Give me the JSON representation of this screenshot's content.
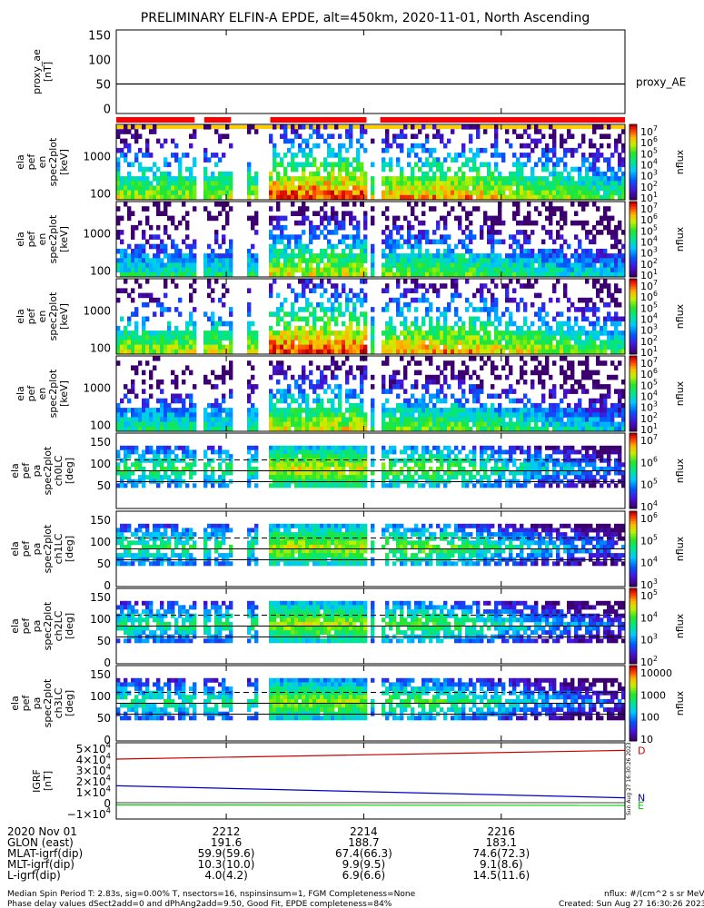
{
  "title": "PRELIMINARY ELFIN-A EPDE, alt=450km, 2020-11-01, North Ascending",
  "colors": {
    "red": "#ff0000",
    "yellow": "#ffcc00",
    "grf_red": "#cc0000",
    "grf_blue": "#0000cc",
    "grf_green": "#00cc00"
  },
  "chart_data": [
    {
      "type": "line",
      "name": "proxy_ae",
      "ylabel_lines": [
        "proxy_ae",
        "[nT]"
      ],
      "ylim": [
        -10,
        160
      ],
      "yticks": [
        "150",
        "100",
        "50",
        "0"
      ],
      "legend": "proxy_AE",
      "series": [
        {
          "name": "proxy_AE",
          "x": [
            2210.4,
            2217.8
          ],
          "values": [
            50,
            50
          ]
        }
      ]
    },
    {
      "type": "heatmap",
      "name": "energy-spectrogram-1",
      "ylabel_lines": [
        "ela",
        "pef",
        "en",
        "spec2plot",
        "[keV]"
      ],
      "yscale": "log",
      "yticks": [
        "1000",
        "100"
      ],
      "colorbar_label": "nflux",
      "colorbar_ticks": [
        "10^7",
        "10^6",
        "10^5",
        "10^4",
        "10^3",
        "10^2",
        "10^1"
      ]
    },
    {
      "type": "heatmap",
      "name": "energy-spectrogram-2",
      "ylabel_lines": [
        "ela",
        "pef",
        "en",
        "spec2plot",
        "[keV]"
      ],
      "yscale": "log",
      "yticks": [
        "1000",
        "100"
      ],
      "colorbar_label": "nflux",
      "colorbar_ticks": [
        "10^7",
        "10^6",
        "10^5",
        "10^4",
        "10^3",
        "10^2",
        "10^1"
      ]
    },
    {
      "type": "heatmap",
      "name": "energy-spectrogram-3",
      "ylabel_lines": [
        "ela",
        "pef",
        "en",
        "spec2plot",
        "[keV]"
      ],
      "yscale": "log",
      "yticks": [
        "1000",
        "100"
      ],
      "colorbar_label": "nflux",
      "colorbar_ticks": [
        "10^7",
        "10^6",
        "10^5",
        "10^4",
        "10^3",
        "10^2",
        "10^1"
      ]
    },
    {
      "type": "heatmap",
      "name": "energy-spectrogram-4",
      "ylabel_lines": [
        "ela",
        "pef",
        "en",
        "spec2plot",
        "[keV]"
      ],
      "yscale": "log",
      "yticks": [
        "1000",
        "100"
      ],
      "colorbar_label": "nflux",
      "colorbar_ticks": [
        "10^7",
        "10^6",
        "10^5",
        "10^4",
        "10^3",
        "10^2",
        "10^1"
      ]
    },
    {
      "type": "heatmap",
      "name": "pitch-angle-ch0LC",
      "ylabel_lines": [
        "ela",
        "pef",
        "pa",
        "spec2plot",
        "ch0LC",
        "[deg]"
      ],
      "ylim": [
        0,
        180
      ],
      "yticks": [
        "150",
        "100",
        "50"
      ],
      "colorbar_label": "nflux",
      "colorbar_ticks": [
        "10^7",
        "10^6",
        "10^5",
        "10^4"
      ]
    },
    {
      "type": "heatmap",
      "name": "pitch-angle-ch1LC",
      "ylabel_lines": [
        "ela",
        "pef",
        "pa",
        "spec2plot",
        "ch1LC",
        "[deg]"
      ],
      "ylim": [
        0,
        180
      ],
      "yticks": [
        "150",
        "100",
        "50",
        "0"
      ],
      "colorbar_label": "nflux",
      "colorbar_ticks": [
        "10^6",
        "10^5",
        "10^4",
        "10^3"
      ]
    },
    {
      "type": "heatmap",
      "name": "pitch-angle-ch2LC",
      "ylabel_lines": [
        "ela",
        "pef",
        "pa",
        "spec2plot",
        "ch2LC",
        "[deg]"
      ],
      "ylim": [
        0,
        180
      ],
      "yticks": [
        "150",
        "100",
        "50",
        "0"
      ],
      "colorbar_label": "nflux",
      "colorbar_ticks": [
        "10^5",
        "10^4",
        "10^3",
        "10^2"
      ]
    },
    {
      "type": "heatmap",
      "name": "pitch-angle-ch3LC",
      "ylabel_lines": [
        "ela",
        "pef",
        "pa",
        "spec2plot",
        "ch3LC",
        "[deg]"
      ],
      "ylim": [
        0,
        180
      ],
      "yticks": [
        "150",
        "100",
        "50",
        "0"
      ],
      "colorbar_label": "nflux",
      "colorbar_ticks": [
        "10000",
        "1000",
        "100",
        "10"
      ]
    },
    {
      "type": "line",
      "name": "igrf",
      "ylabel_lines": [
        "IGRF",
        "[nT]"
      ],
      "ylim": [
        -15000,
        55000
      ],
      "yticks": [
        "5×10^4",
        "4×10^4",
        "3×10^4",
        "2×10^4",
        "1×10^4",
        "0",
        "−1×10^4"
      ],
      "series": [
        {
          "name": "D",
          "x": [
            2210.4,
            2217.8
          ],
          "values": [
            40000,
            48000
          ]
        },
        {
          "name": "N",
          "x": [
            2210.4,
            2217.8
          ],
          "values": [
            15500,
            4500
          ]
        },
        {
          "name": "E",
          "x": [
            2210.4,
            2217.8
          ],
          "values": [
            -2000,
            -2500
          ]
        }
      ],
      "series_labels": [
        "D",
        "N",
        "E"
      ],
      "side_text": "Sun Aug 27 16:30:26 2023"
    }
  ],
  "xaxis": {
    "ticks": [
      {
        "x": 2212,
        "label": "2212"
      },
      {
        "x": 2214,
        "label": "2214"
      },
      {
        "x": 2216,
        "label": "2216"
      }
    ],
    "rows": [
      {
        "label": "2020 Nov 01",
        "values": [
          "2212",
          "2214",
          "2216"
        ]
      },
      {
        "label": "GLON (east)",
        "values": [
          "191.6",
          "188.7",
          "183.1"
        ]
      },
      {
        "label": "MLAT-igrf(dip)",
        "values": [
          "59.9(59.6)",
          "67.4(66.3)",
          "74.6(72.3)"
        ]
      },
      {
        "label": "MLT-igrf(dip)",
        "values": [
          "10.3(10.0)",
          "9.9(9.5)",
          "9.1(8.6)"
        ]
      },
      {
        "label": "L-igrf(dip)",
        "values": [
          "4.0(4.2)",
          "6.9(6.6)",
          "14.5(11.6)"
        ]
      }
    ]
  },
  "footer": {
    "line1": "Median Spin Period T: 2.83s, sig=0.00% T, nsectors=16, nspinsinsum=1, FGM Completeness=None",
    "line2": "Phase delay values dSect2add=0 and dPhAng2add=9.50, Good Fit, EPDE completeness=84%",
    "right1": "nflux: #/(cm^2 s sr MeV)",
    "right2": "Created: Sun Aug 27 16:30:26 2023"
  }
}
